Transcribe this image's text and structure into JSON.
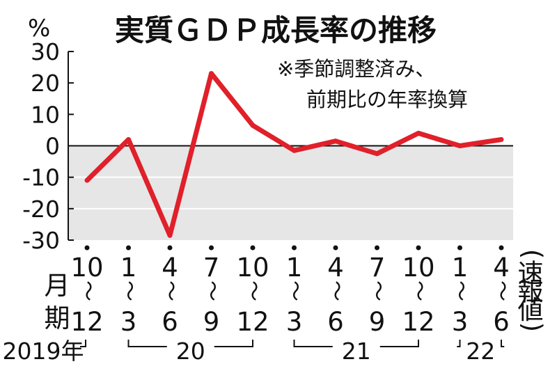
{
  "chart_data": {
    "type": "line",
    "title": "実質ＧＤＰ成長率の推移",
    "ylabel": "%",
    "note_lines": [
      "※季節調整済み、",
      "前期比の年率換算"
    ],
    "ylim": [
      -30,
      30
    ],
    "yticks": [
      "30",
      "20",
      "10",
      "0",
      "-10",
      "-20",
      "-30"
    ],
    "x_row_label": [
      "月",
      "期"
    ],
    "x_tilde": "～",
    "categories": [
      {
        "start": "10",
        "end": "12"
      },
      {
        "start": "1",
        "end": "3"
      },
      {
        "start": "4",
        "end": "6"
      },
      {
        "start": "7",
        "end": "9"
      },
      {
        "start": "10",
        "end": "12"
      },
      {
        "start": "1",
        "end": "3"
      },
      {
        "start": "4",
        "end": "6"
      },
      {
        "start": "7",
        "end": "9"
      },
      {
        "start": "10",
        "end": "12"
      },
      {
        "start": "1",
        "end": "3"
      },
      {
        "start": "4",
        "end": "6"
      }
    ],
    "preliminary_label": "(速報値)",
    "years": [
      {
        "label": "2019年",
        "from": 0,
        "to": 0
      },
      {
        "label": "20",
        "from": 1,
        "to": 4
      },
      {
        "label": "21",
        "from": 5,
        "to": 8
      },
      {
        "label": "22",
        "from": 9,
        "to": 10
      }
    ],
    "series": [
      {
        "values": [
          -11,
          2,
          -28.5,
          23,
          6.5,
          -1.5,
          1.5,
          -2.5,
          4,
          0,
          2
        ]
      }
    ],
    "grid": true,
    "colors": {
      "line": "#e0202a",
      "plot_bg": "#e6e6e6",
      "axis": "#111111",
      "grid": "#ffffff"
    }
  }
}
